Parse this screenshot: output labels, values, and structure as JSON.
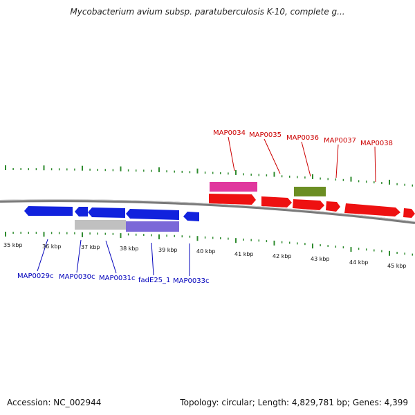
{
  "title": "Mycobacterium avium subsp. paratuberculosis K-10, complete g...",
  "footer": {
    "accession": "Accession: NC_002944",
    "topology": "Topology: circular; Length: 4,829,781 bp; Genes: 4,399"
  },
  "colors": {
    "forward_gene": "#ee1111",
    "reverse_gene": "#1122dd",
    "pink_feature": "#e0389e",
    "olive_feature": "#6b8e23",
    "grey_feature": "#c0c0c0",
    "purple_feature": "#7b68d8",
    "tick_green": "#2e8b2e",
    "backbone": "#7a7a7a"
  },
  "kbp_labels": [
    "35 kbp",
    "36 kbp",
    "37 kbp",
    "38 kbp",
    "39 kbp",
    "40 kbp",
    "41 kbp",
    "42 kbp",
    "43 kbp",
    "44 kbp",
    "45 kbp"
  ],
  "forward_labels": [
    "MAP0034",
    "MAP0035",
    "MAP0036",
    "MAP0037",
    "MAP0038"
  ],
  "reverse_labels": [
    "MAP0029c",
    "MAP0030c",
    "MAP0031c",
    "fadE25_1",
    "MAP0033c"
  ]
}
